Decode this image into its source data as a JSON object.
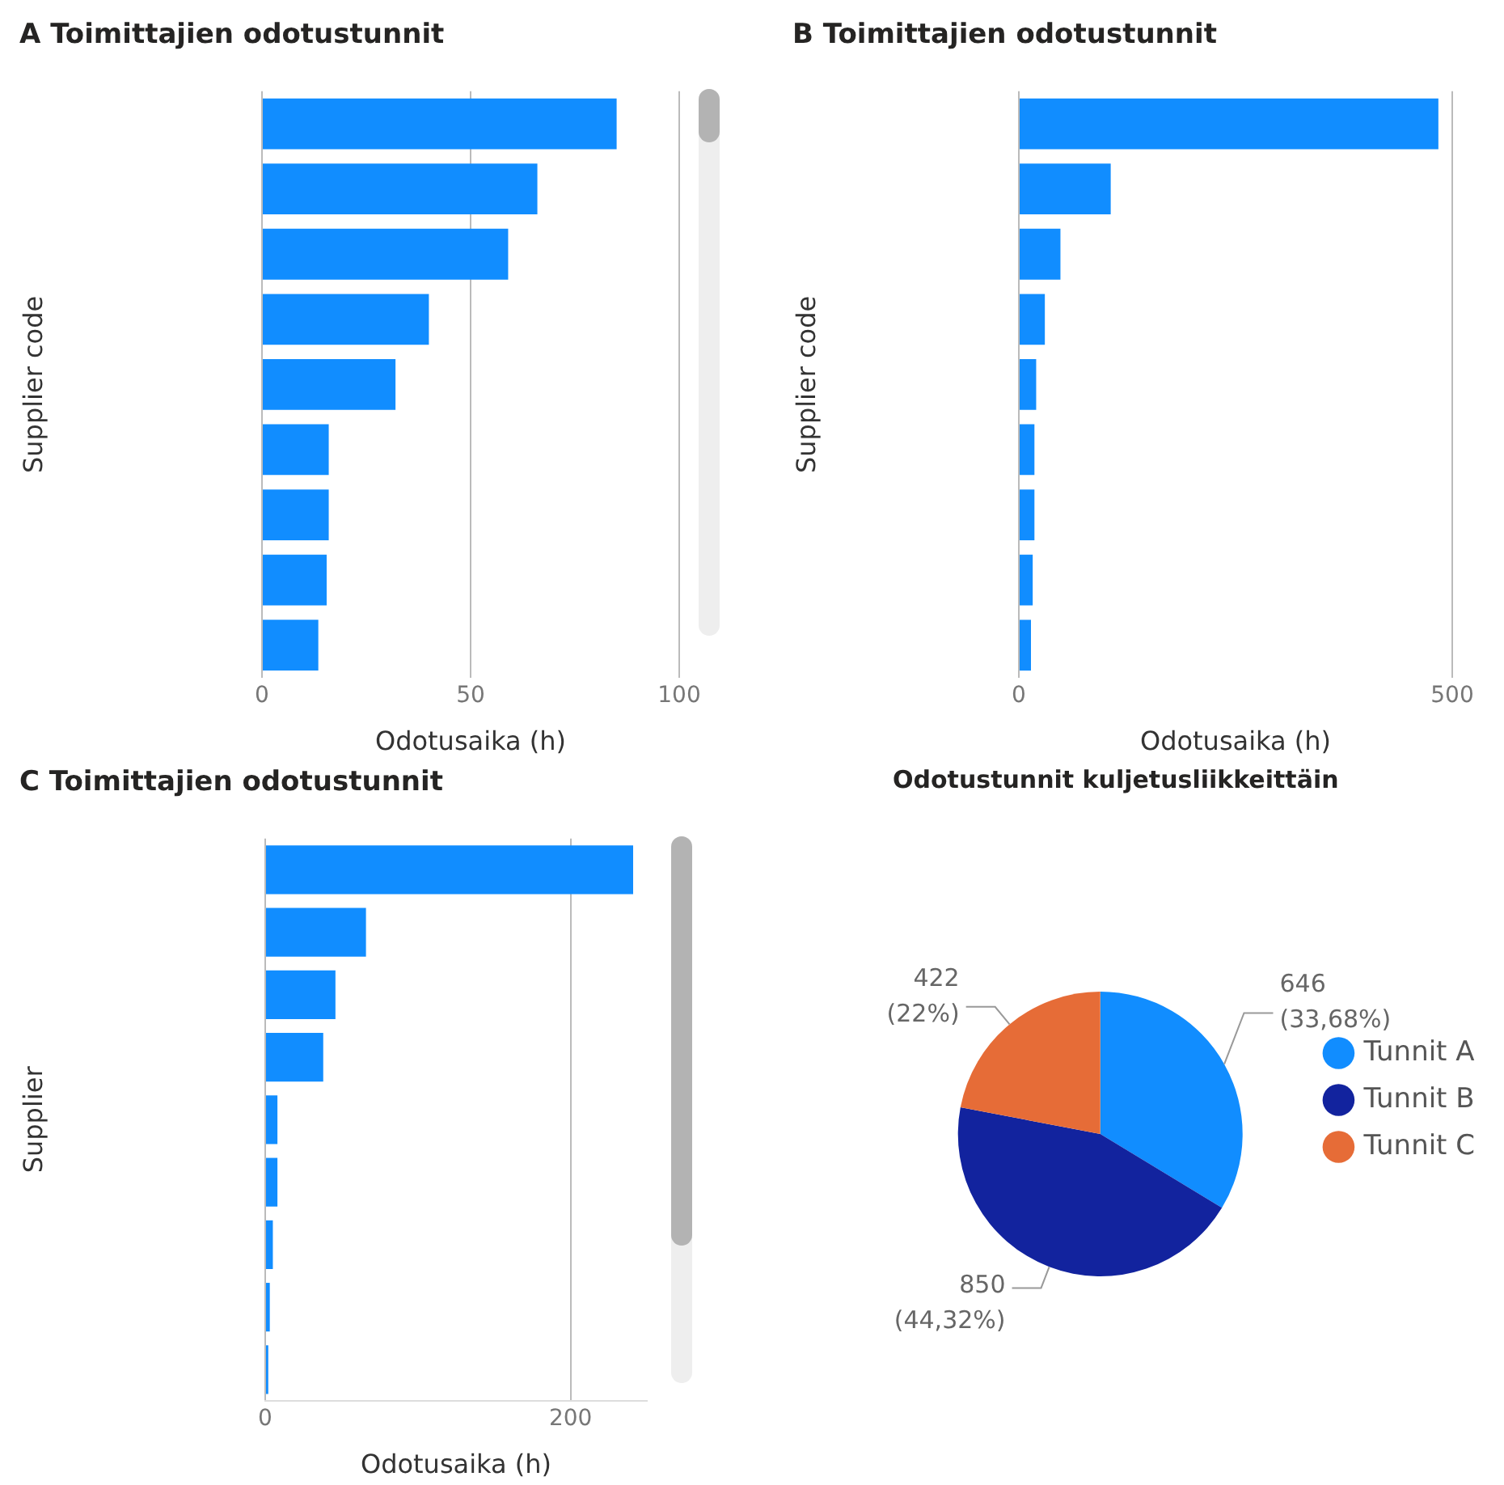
{
  "chart_data": [
    {
      "type": "bar",
      "orientation": "horizontal",
      "title": "A Toimittajien odotustunnit",
      "xlabel": "Odotusaika (h)",
      "ylabel": "Supplier code",
      "categories": [
        null,
        null,
        null,
        null,
        null,
        null,
        null,
        null,
        null
      ],
      "values": [
        85,
        66,
        59,
        40,
        32,
        16,
        16,
        15.5,
        13.5
      ],
      "color": "#118dff",
      "xlim": [
        0,
        100
      ],
      "xticks": [
        0,
        50,
        100
      ],
      "grid": "x",
      "tick_labels": "x"
    },
    {
      "type": "bar",
      "orientation": "horizontal",
      "title": "B Toimittajien odotustunnit",
      "xlabel": "Odotusaika (h)",
      "ylabel": "Supplier code",
      "categories": [
        null,
        null,
        null,
        null,
        null,
        null,
        null,
        null,
        null
      ],
      "values": [
        484,
        106,
        48,
        30,
        20,
        18,
        18,
        16,
        14
      ],
      "color": "#118dff",
      "xlim": [
        0,
        500
      ],
      "xticks": [
        0,
        500
      ],
      "grid": "x",
      "tick_labels": "x"
    },
    {
      "type": "bar",
      "orientation": "horizontal",
      "title": "C Toimittajien odotustunnit",
      "xlabel": "Odotusaika (h)",
      "ylabel": "Supplier",
      "categories": [
        null,
        null,
        null,
        null,
        null,
        null,
        null,
        null,
        null
      ],
      "values": [
        241,
        66,
        46,
        38,
        8,
        8,
        5,
        3,
        2
      ],
      "color": "#118dff",
      "xlim": [
        0,
        250
      ],
      "xticks": [
        0,
        200
      ],
      "grid": "x",
      "tick_labels": "x"
    },
    {
      "type": "pie",
      "title": "Odotustunnit kuljetusliikkeittäin",
      "categories": [
        "Tunnit A",
        "Tunnit B",
        "Tunnit C"
      ],
      "values": [
        646,
        850,
        422
      ],
      "colors": [
        "#118dff",
        "#12239e",
        "#e66c37"
      ],
      "value_labels": [
        "646 (33,68%)",
        "850 (44,32%)",
        "422 (22%)"
      ],
      "legend": "right"
    }
  ]
}
